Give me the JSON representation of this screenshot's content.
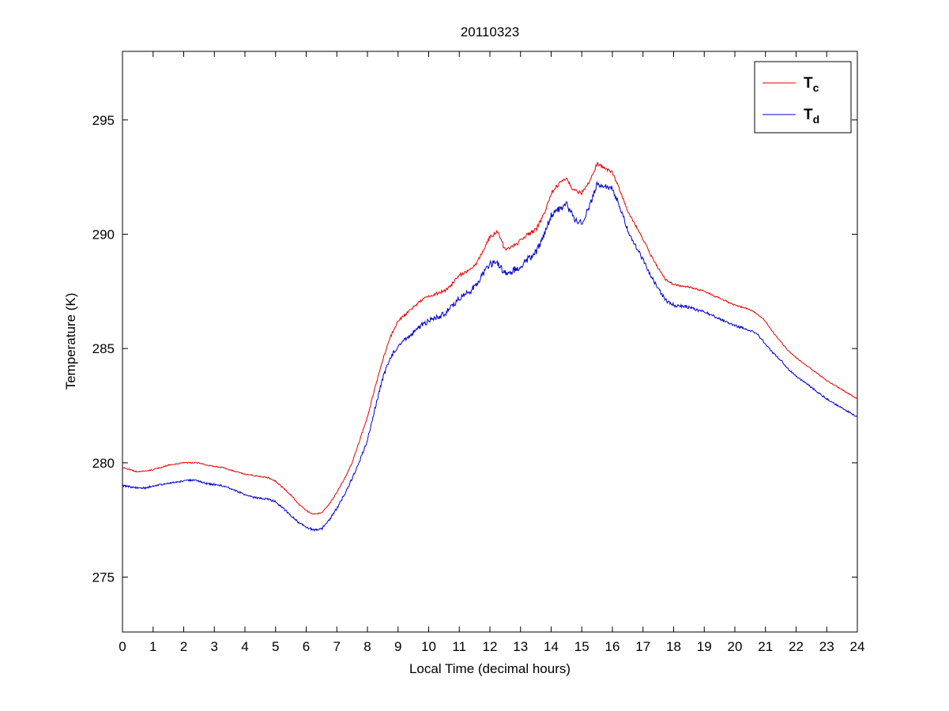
{
  "chart_data": {
    "type": "line",
    "title": "20110323",
    "xlabel": "Local Time (decimal hours)",
    "ylabel": "Temperature (K)",
    "xlim": [
      0,
      24
    ],
    "ylim": [
      272.6,
      298.0
    ],
    "xticks": [
      0,
      1,
      2,
      3,
      4,
      5,
      6,
      7,
      8,
      9,
      10,
      11,
      12,
      13,
      14,
      15,
      16,
      17,
      18,
      19,
      20,
      21,
      22,
      23,
      24
    ],
    "yticks": [
      275,
      280,
      285,
      290,
      295
    ],
    "grid": false,
    "legend_position": "top-right",
    "x": [
      0,
      0.25,
      0.5,
      0.75,
      1,
      1.25,
      1.5,
      1.75,
      2,
      2.25,
      2.5,
      2.75,
      3,
      3.25,
      3.5,
      3.75,
      4,
      4.25,
      4.5,
      4.75,
      5,
      5.25,
      5.5,
      5.75,
      6,
      6.25,
      6.5,
      6.75,
      7,
      7.25,
      7.5,
      7.75,
      8,
      8.25,
      8.5,
      8.75,
      9,
      9.25,
      9.5,
      9.75,
      10,
      10.25,
      10.5,
      10.75,
      11,
      11.25,
      11.5,
      11.75,
      12,
      12.25,
      12.5,
      12.75,
      13,
      13.25,
      13.5,
      13.75,
      14,
      14.25,
      14.5,
      14.75,
      15,
      15.25,
      15.5,
      15.75,
      16,
      16.25,
      16.5,
      16.75,
      17,
      17.25,
      17.5,
      17.75,
      18,
      18.25,
      18.5,
      18.75,
      19,
      19.25,
      19.5,
      19.75,
      20,
      20.25,
      20.5,
      20.75,
      21,
      21.25,
      21.5,
      21.75,
      22,
      22.25,
      22.5,
      22.75,
      23,
      23.25,
      23.5,
      23.75,
      24
    ],
    "series": [
      {
        "name": "Tc",
        "label_main": "T",
        "label_sub": "c",
        "color": "#e60000",
        "noise_amplitude": 0.09,
        "values": [
          279.8,
          279.7,
          279.6,
          279.65,
          279.7,
          279.8,
          279.9,
          279.95,
          280.0,
          280.0,
          280.0,
          279.9,
          279.85,
          279.8,
          279.7,
          279.6,
          279.5,
          279.45,
          279.4,
          279.35,
          279.2,
          278.9,
          278.6,
          278.2,
          277.9,
          277.75,
          277.8,
          278.2,
          278.7,
          279.3,
          280.0,
          281.0,
          282.0,
          283.3,
          284.5,
          285.5,
          286.2,
          286.5,
          286.8,
          287.1,
          287.3,
          287.4,
          287.5,
          287.8,
          288.2,
          288.4,
          288.6,
          289.2,
          289.9,
          290.1,
          289.3,
          289.5,
          289.7,
          290.0,
          290.2,
          290.8,
          291.8,
          292.2,
          292.4,
          291.9,
          291.8,
          292.3,
          293.1,
          292.9,
          292.7,
          291.9,
          291.0,
          290.4,
          289.8,
          289.1,
          288.5,
          288.0,
          287.8,
          287.75,
          287.7,
          287.6,
          287.5,
          287.35,
          287.2,
          287.05,
          286.9,
          286.8,
          286.7,
          286.5,
          286.2,
          285.7,
          285.3,
          284.9,
          284.6,
          284.35,
          284.1,
          283.85,
          283.6,
          283.4,
          283.2,
          283.0,
          282.8
        ]
      },
      {
        "name": "Td",
        "label_main": "T",
        "label_sub": "d",
        "color": "#0000cc",
        "noise_amplitude": 0.16,
        "values": [
          279.0,
          278.95,
          278.9,
          278.9,
          279.0,
          279.05,
          279.1,
          279.15,
          279.2,
          279.25,
          279.2,
          279.1,
          279.05,
          279.0,
          278.9,
          278.75,
          278.6,
          278.5,
          278.45,
          278.4,
          278.3,
          278.0,
          277.7,
          277.4,
          277.2,
          277.05,
          277.1,
          277.5,
          278.0,
          278.6,
          279.3,
          280.1,
          281.0,
          282.4,
          283.7,
          284.6,
          285.1,
          285.4,
          285.7,
          286.0,
          286.2,
          286.35,
          286.5,
          286.8,
          287.2,
          287.4,
          287.7,
          288.2,
          288.7,
          288.7,
          288.3,
          288.4,
          288.6,
          288.9,
          289.2,
          289.9,
          290.8,
          291.1,
          291.3,
          290.7,
          290.5,
          291.2,
          292.2,
          292.1,
          292.0,
          291.2,
          290.2,
          289.5,
          288.9,
          288.2,
          287.6,
          287.1,
          286.9,
          286.85,
          286.8,
          286.7,
          286.6,
          286.45,
          286.3,
          286.15,
          286.0,
          285.9,
          285.8,
          285.6,
          285.2,
          284.8,
          284.5,
          284.1,
          283.8,
          283.55,
          283.3,
          283.05,
          282.8,
          282.6,
          282.4,
          282.2,
          282.0
        ]
      }
    ]
  }
}
